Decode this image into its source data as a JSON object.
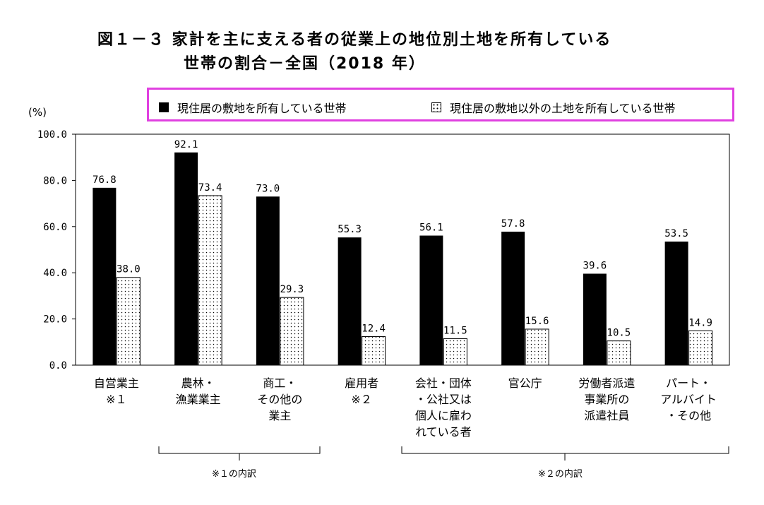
{
  "title_line1": "図１－３ 家計を主に支える者の従業上の地位別土地を所有している",
  "title_line2": "世帯の割合－全国（2018 年）",
  "unit": "(%)",
  "brace_labels": [
    "※１の内訳",
    "※２の内訳"
  ],
  "chart_data": {
    "type": "bar",
    "categories": [
      "自営業主\n※１",
      "農林・\n漁業業主",
      "商工・\nその他の\n業主",
      "雇用者\n※２",
      "会社・団体\n・公社又は\n個人に雇わ\nれている者",
      "官公庁",
      "労働者派遣\n事業所の\n派遣社員",
      "パート・\nアルバイト\n・その他"
    ],
    "series": [
      {
        "name": "現住居の敷地を所有している世帯",
        "values": [
          76.8,
          92.1,
          73.0,
          55.3,
          56.1,
          57.8,
          39.6,
          53.5
        ],
        "color": "#000000"
      },
      {
        "name": "現住居の敷地以外の土地を所有している世帯",
        "values": [
          38.0,
          73.4,
          29.3,
          12.4,
          11.5,
          15.6,
          10.5,
          14.9
        ],
        "color": "#ffffff",
        "pattern": "dots"
      }
    ],
    "value_labels": [
      [
        "76.8",
        "92.1",
        "73.0",
        "55.3",
        "56.1",
        "57.8",
        "39.6",
        "53.5"
      ],
      [
        "38.0",
        "73.4",
        "29.3",
        "12.4",
        "11.5",
        "15.6",
        "10.5",
        "14.9"
      ]
    ],
    "yticks": [
      "0.0",
      "20.0",
      "40.0",
      "60.0",
      "80.0",
      "100.0"
    ],
    "ylim": [
      0,
      100
    ],
    "grid": false,
    "legend_position": "top"
  }
}
